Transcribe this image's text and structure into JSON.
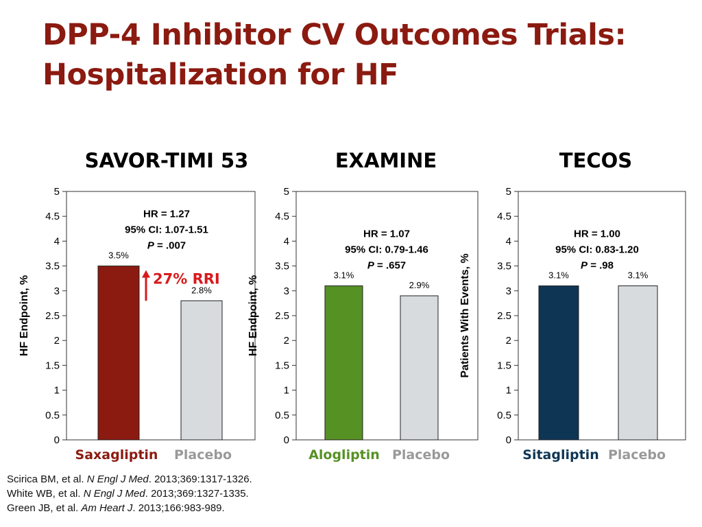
{
  "slide": {
    "title_line1": "DPP-4 Inhibitor CV Outcomes Trials:",
    "title_line2": "Hospitalization for HF"
  },
  "colors": {
    "title": "#8b1a10",
    "saxagliptin": "#8b1a10",
    "alogliptin": "#569124",
    "sitagliptin": "#0f3554",
    "placebo": "#d7dbde",
    "placebo_label": "#999999",
    "rri": "#d9191c"
  },
  "chart_data": [
    {
      "type": "bar",
      "title": "SAVOR-TIMI 53",
      "ylabel": "HF Endpoint, %",
      "ylim": [
        0,
        5
      ],
      "yticks": [
        "0",
        "0.5",
        "1",
        "1.5",
        "2",
        "2.5",
        "3",
        "3.5",
        "4",
        "4.5",
        "5"
      ],
      "categories": [
        "Saxagliptin",
        "Placebo"
      ],
      "values": [
        3.5,
        2.8
      ],
      "data_labels": [
        "3.5%",
        "2.8%"
      ],
      "bar_colors": [
        "#8b1a10",
        "#d7dbde"
      ],
      "category_colors": [
        "#8b1a10",
        "#999999"
      ],
      "stats": {
        "hr": "HR = 1.27",
        "ci": "95% CI: 1.07-1.51",
        "p_label": "P",
        "p_value": " = .007"
      },
      "annotation": "27% RRI"
    },
    {
      "type": "bar",
      "title": "EXAMINE",
      "ylabel": "HF Endpoint, %",
      "ylim": [
        0,
        5
      ],
      "yticks": [
        "0",
        "0.5",
        "1",
        "1.5",
        "2",
        "2.5",
        "3",
        "3.5",
        "4",
        "4.5",
        "5"
      ],
      "categories": [
        "Alogliptin",
        "Placebo"
      ],
      "values": [
        3.1,
        2.9
      ],
      "data_labels": [
        "3.1%",
        "2.9%"
      ],
      "bar_colors": [
        "#569124",
        "#d7dbde"
      ],
      "category_colors": [
        "#569124",
        "#999999"
      ],
      "stats": {
        "hr": "HR = 1.07",
        "ci": "95% CI: 0.79-1.46",
        "p_label": "P",
        "p_value": " = .657"
      }
    },
    {
      "type": "bar",
      "title": "TECOS",
      "ylabel": "Patients With Events, %",
      "ylim": [
        0,
        5
      ],
      "yticks": [
        "0",
        "0.5",
        "1",
        "1.5",
        "2",
        "2.5",
        "3",
        "3.5",
        "4",
        "4.5",
        "5"
      ],
      "categories": [
        "Sitagliptin",
        "Placebo"
      ],
      "values": [
        3.1,
        3.1
      ],
      "data_labels": [
        "3.1%",
        "3.1%"
      ],
      "bar_colors": [
        "#0f3554",
        "#d7dbde"
      ],
      "category_colors": [
        "#0f3554",
        "#999999"
      ],
      "stats": {
        "hr": "HR = 1.00",
        "ci": "95% CI: 0.83-1.20",
        "p_label": "P",
        "p_value": " = .98"
      }
    }
  ],
  "references": [
    {
      "authors": "Scirica BM, et al. ",
      "journal": "N Engl J Med",
      "details": ". 2013;369:1317-1326."
    },
    {
      "authors": "White WB, et al. ",
      "journal": "N Engl J Med",
      "details": ". 2013;369:1327-1335."
    },
    {
      "authors": "Green JB, et al. ",
      "journal": "Am Heart J",
      "details": ". 2013;166:983-989."
    }
  ]
}
